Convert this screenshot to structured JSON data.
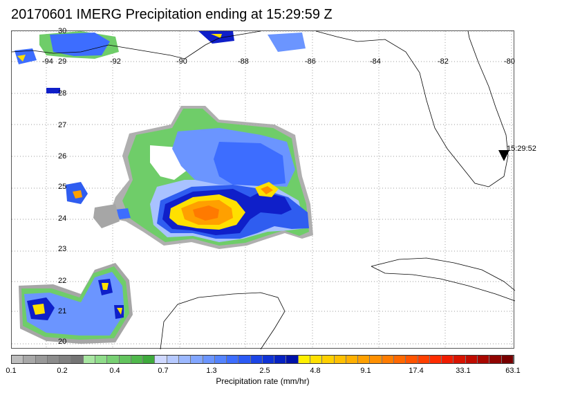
{
  "title": "20170601 IMERG Precipitation ending at 15:29:59 Z",
  "orbit_time_label": "15:29:52",
  "map": {
    "lon_labels": [
      "-94",
      "-92",
      "-90",
      "-88",
      "-86",
      "-84",
      "-82",
      "-80"
    ],
    "lat_labels": [
      "30",
      "29",
      "28",
      "27",
      "26",
      "25",
      "24",
      "23",
      "22",
      "21",
      "20"
    ]
  },
  "colorbar": {
    "title": "Precipitation rate (mm/hr)",
    "tick_labels": [
      "0.1",
      "0.2",
      "0.4",
      "0.7",
      "1.3",
      "2.5",
      "4.8",
      "9.1",
      "17.4",
      "33.1",
      "63.1"
    ],
    "colors": [
      "#bdbdbd",
      "#a8a8a8",
      "#999999",
      "#8c8c8c",
      "#808080",
      "#747474",
      "#a8e6a1",
      "#8fdc8a",
      "#78d073",
      "#63c45e",
      "#50b84c",
      "#3eaa3c",
      "#cfd8ff",
      "#b6c9ff",
      "#9cb8ff",
      "#82a6ff",
      "#6b95ff",
      "#5484ff",
      "#3d6dff",
      "#2b5af5",
      "#1c45e6",
      "#0f33d6",
      "#0622c2",
      "#0012a8",
      "#fff000",
      "#ffe000",
      "#ffd000",
      "#ffc000",
      "#ffb000",
      "#ffa000",
      "#ff9000",
      "#ff7c00",
      "#ff6800",
      "#ff5400",
      "#ff4000",
      "#ff2c00",
      "#f01c00",
      "#d81400",
      "#c00c00",
      "#a80800",
      "#900400",
      "#780000"
    ]
  },
  "precip_palette": {
    "gray": "#a6a6a6",
    "light_green": "#8fdc8a",
    "green": "#56bd52",
    "light_blue": "#a9c2ff",
    "mid_blue": "#6b95ff",
    "blue": "#2f5df0",
    "dark_blue": "#0f1fc9",
    "yellow": "#ffe000",
    "orange": "#ffa000",
    "red_orange": "#ff6a00"
  }
}
